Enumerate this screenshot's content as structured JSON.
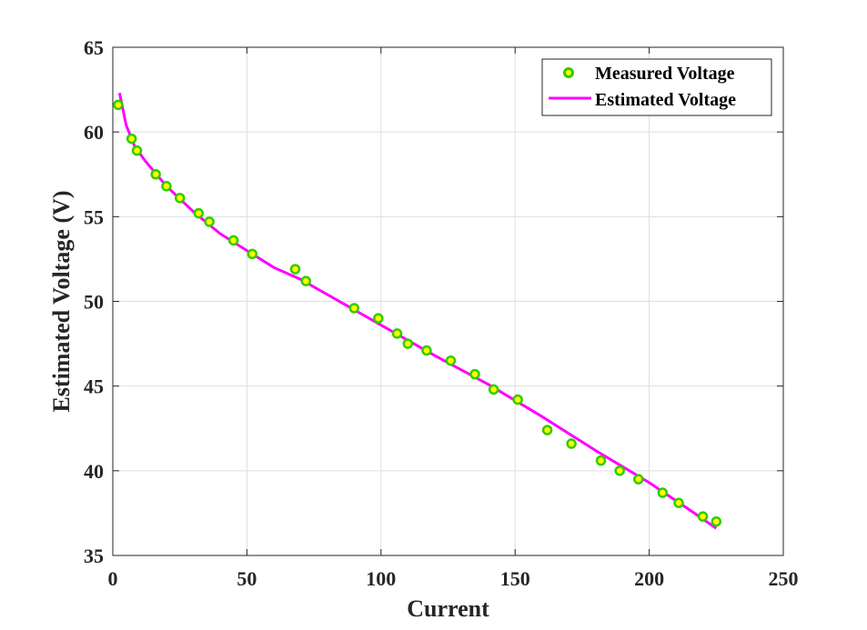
{
  "chart_data": {
    "type": "line",
    "title": "",
    "xlabel": "Current",
    "ylabel": "Estimated Voltage (V)",
    "xlim": [
      0,
      250
    ],
    "ylim": [
      35,
      65
    ],
    "x_ticks": [
      "0",
      "50",
      "100",
      "150",
      "200",
      "250"
    ],
    "y_ticks": [
      "35",
      "40",
      "45",
      "50",
      "55",
      "60",
      "65"
    ],
    "grid": true,
    "legend_position": "top-right",
    "series": [
      {
        "name": "Measured Voltage",
        "kind": "scatter",
        "marker_fill": "#ffff00",
        "marker_edge": "#33cc00",
        "points": [
          [
            2,
            61.6
          ],
          [
            7,
            59.6
          ],
          [
            9,
            58.9
          ],
          [
            16,
            57.5
          ],
          [
            20,
            56.8
          ],
          [
            25,
            56.1
          ],
          [
            32,
            55.2
          ],
          [
            36,
            54.7
          ],
          [
            45,
            53.6
          ],
          [
            52,
            52.8
          ],
          [
            68,
            51.9
          ],
          [
            72,
            51.2
          ],
          [
            90,
            49.6
          ],
          [
            99,
            49.0
          ],
          [
            106,
            48.1
          ],
          [
            110,
            47.5
          ],
          [
            117,
            47.1
          ],
          [
            126,
            46.5
          ],
          [
            135,
            45.7
          ],
          [
            142,
            44.8
          ],
          [
            151,
            44.2
          ],
          [
            162,
            42.4
          ],
          [
            171,
            41.6
          ],
          [
            182,
            40.6
          ],
          [
            189,
            40.0
          ],
          [
            196,
            39.5
          ],
          [
            205,
            38.7
          ],
          [
            211,
            38.1
          ],
          [
            220,
            37.3
          ],
          [
            225,
            37.0
          ]
        ]
      },
      {
        "name": "Estimated Voltage",
        "kind": "line",
        "color": "#ff00ff",
        "points": [
          [
            2.5,
            62.3
          ],
          [
            5,
            60.4
          ],
          [
            8,
            59.2
          ],
          [
            12,
            58.3
          ],
          [
            20,
            56.8
          ],
          [
            30,
            55.3
          ],
          [
            40,
            54.0
          ],
          [
            50,
            53.0
          ],
          [
            60,
            52.0
          ],
          [
            70,
            51.3
          ],
          [
            80,
            50.4
          ],
          [
            100,
            48.6
          ],
          [
            120,
            46.8
          ],
          [
            140,
            45.1
          ],
          [
            160,
            43.2
          ],
          [
            180,
            41.2
          ],
          [
            200,
            39.3
          ],
          [
            215,
            37.7
          ],
          [
            225,
            36.6
          ]
        ]
      }
    ]
  }
}
